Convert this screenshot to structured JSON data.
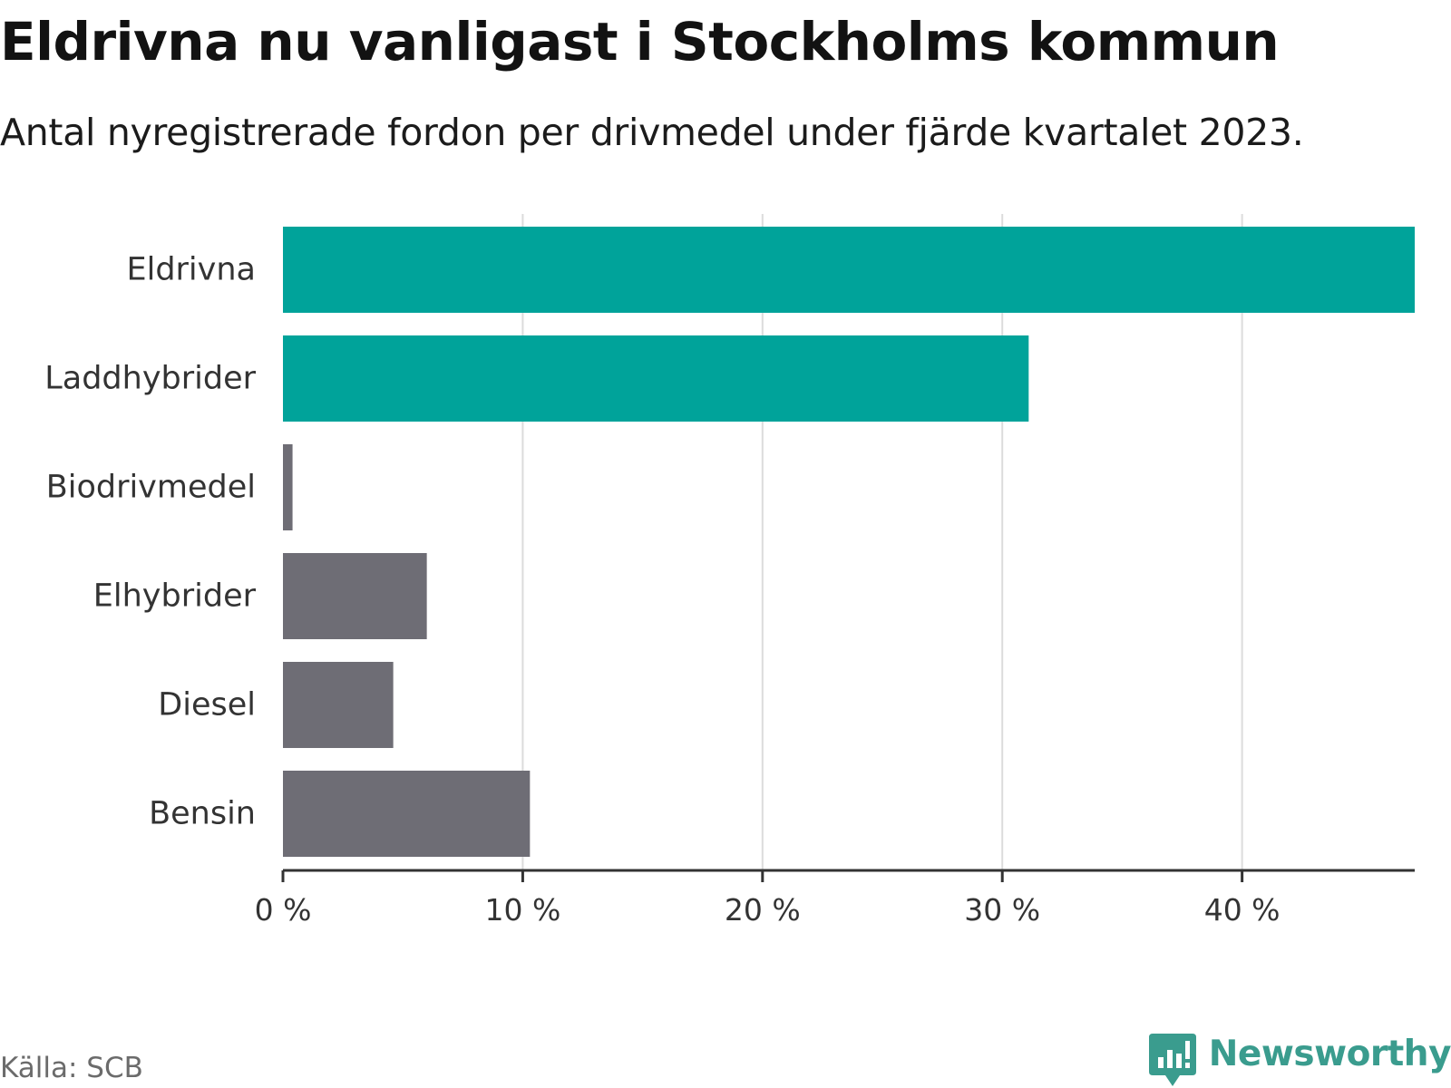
{
  "title": "Eldrivna nu vanligast i Stockholms kommun",
  "subtitle": "Antal nyregistrerade fordon per drivmedel under fjärde kvartalet 2023.",
  "colors": {
    "highlight": "#00a39a",
    "muted": "#6e6d75",
    "brand": "#3a9c8e"
  },
  "chart_data": {
    "type": "bar",
    "orientation": "horizontal",
    "categories": [
      "Eldrivna",
      "Laddhybrider",
      "Biodrivmedel",
      "Elhybrider",
      "Diesel",
      "Bensin"
    ],
    "values": [
      47.2,
      31.1,
      0.4,
      6.0,
      4.6,
      10.3
    ],
    "highlighted": [
      true,
      true,
      false,
      false,
      false,
      false
    ],
    "xlim": [
      0,
      47.2
    ],
    "xticks": [
      0,
      10,
      20,
      30,
      40
    ],
    "xtick_labels": [
      "0 %",
      "10 %",
      "20 %",
      "30 %",
      "40 %"
    ],
    "grid": true,
    "xlabel": "",
    "ylabel": ""
  },
  "footer": {
    "source": "Källa: SCB",
    "brand_name": "Newsworthy",
    "brand_icon": "newsworthy-chart-icon"
  }
}
